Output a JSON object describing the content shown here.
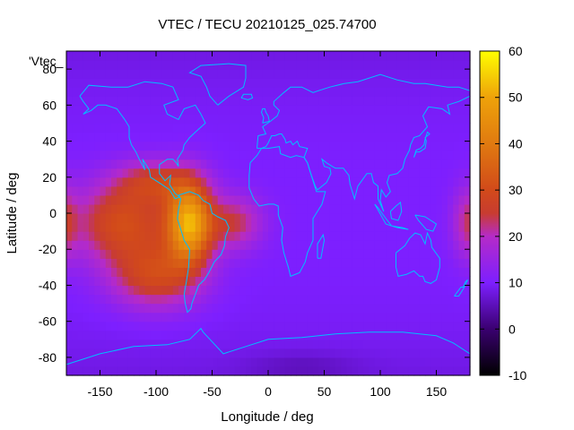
{
  "chart_data": {
    "type": "heatmap",
    "title": "VTEC / TECU 20210125_025.74700",
    "xlabel": "Longitude / deg",
    "ylabel": "Latitude / deg",
    "series_key": "'Vtec_",
    "xlim": [
      -180,
      180
    ],
    "ylim": [
      -90,
      90
    ],
    "xticks": [
      -150,
      -100,
      -50,
      0,
      50,
      100,
      150
    ],
    "yticks": [
      -80,
      -60,
      -40,
      -20,
      0,
      20,
      40,
      60,
      80
    ],
    "colorbar": {
      "range": [
        -10,
        60
      ],
      "ticks": [
        -10,
        0,
        10,
        20,
        30,
        40,
        50,
        60
      ],
      "stops": [
        {
          "v": -10,
          "c": "#000000"
        },
        {
          "v": 0,
          "c": "#3a0070"
        },
        {
          "v": 10,
          "c": "#7d1fff"
        },
        {
          "v": 20,
          "c": "#b52bc8"
        },
        {
          "v": 25,
          "c": "#c83c30"
        },
        {
          "v": 30,
          "c": "#d24a1a"
        },
        {
          "v": 40,
          "c": "#e07a10"
        },
        {
          "v": 50,
          "c": "#eea20a"
        },
        {
          "v": 60,
          "c": "#ffff00"
        }
      ]
    },
    "background_vtec": 10,
    "features": [
      {
        "name": "south-america-peak",
        "lon": -70,
        "lat": -5,
        "amp": 38,
        "rlon": 20,
        "rlat": 22
      },
      {
        "name": "east-pacific-lobe",
        "lon": -130,
        "lat": -5,
        "amp": 20,
        "rlon": 45,
        "rlat": 22
      },
      {
        "name": "south-pacific-lobe",
        "lon": -100,
        "lat": -35,
        "amp": 18,
        "rlon": 40,
        "rlat": 18
      },
      {
        "name": "central-america",
        "lon": -100,
        "lat": 18,
        "amp": 14,
        "rlon": 35,
        "rlat": 12
      },
      {
        "name": "atlantic-east",
        "lon": -30,
        "lat": -5,
        "amp": 14,
        "rlon": 25,
        "rlat": 15
      },
      {
        "name": "west-pacific-edge",
        "lon": 180,
        "lat": -5,
        "amp": 14,
        "rlon": 15,
        "rlat": 20
      },
      {
        "name": "west-pacific-edge-wrap",
        "lon": -180,
        "lat": -5,
        "amp": 10,
        "rlon": 10,
        "rlat": 20
      },
      {
        "name": "antarctic-low",
        "lon": 30,
        "lat": -85,
        "amp": -3,
        "rlon": 50,
        "rlat": 8
      }
    ],
    "coastline_color": "#00bfff"
  }
}
